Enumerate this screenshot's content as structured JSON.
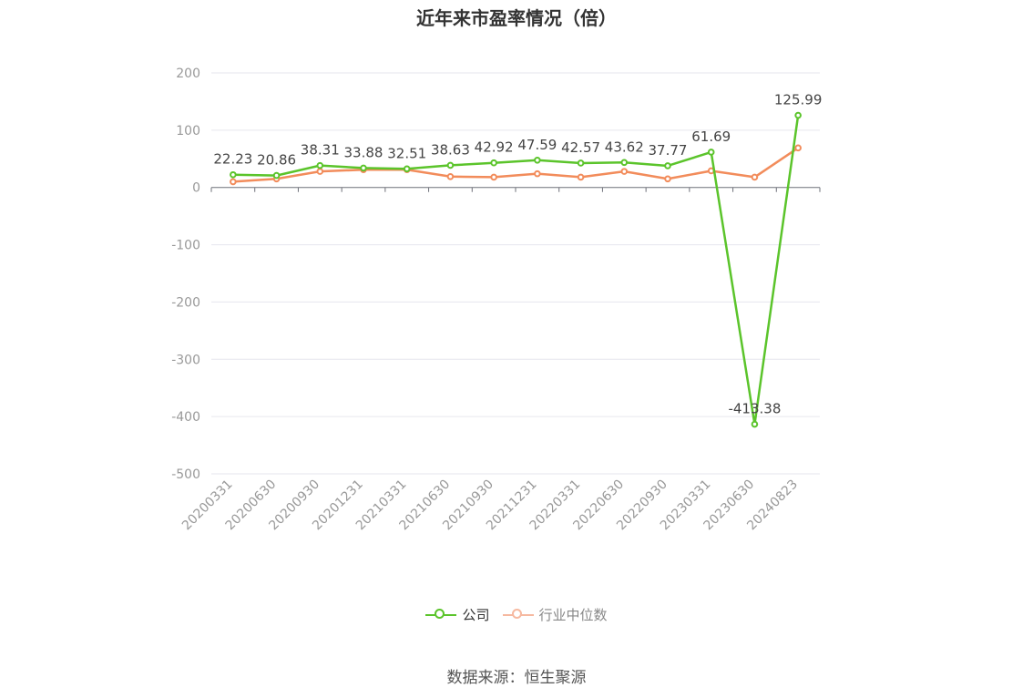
{
  "chart_data": {
    "type": "line",
    "title": "近年来市盈率情况（倍）",
    "categories": [
      "20200331",
      "20200630",
      "20200930",
      "20201231",
      "20210331",
      "20210630",
      "20210930",
      "20211231",
      "20220331",
      "20220630",
      "20220930",
      "20230331",
      "20230630",
      "20240823"
    ],
    "series": [
      {
        "name": "公司",
        "color": "#5bc42b",
        "values": [
          22.23,
          20.86,
          38.31,
          33.88,
          32.51,
          38.63,
          42.92,
          47.59,
          42.57,
          43.62,
          37.77,
          61.69,
          -413.38,
          125.99
        ],
        "labels": [
          "22.23",
          "20.86",
          "38.31",
          "33.88",
          "32.51",
          "38.63",
          "42.92",
          "47.59",
          "42.57",
          "43.62",
          "37.77",
          "61.69",
          "-413.38",
          "125.99"
        ]
      },
      {
        "name": "行业中位数",
        "color": "#f28c5b",
        "values": [
          10,
          15,
          28,
          31,
          31,
          19,
          18,
          24,
          18,
          28,
          15,
          29,
          18,
          69
        ]
      }
    ],
    "ylim": [
      -500,
      200
    ],
    "yticks": [
      200,
      100,
      0,
      -100,
      -200,
      -300,
      -400,
      -500
    ],
    "ytick_labels": [
      "200",
      "100",
      "0",
      "-100",
      "-200",
      "-300",
      "-400",
      "-500"
    ],
    "grid": true,
    "legend_position": "bottom"
  },
  "source": "数据来源：恒生聚源"
}
